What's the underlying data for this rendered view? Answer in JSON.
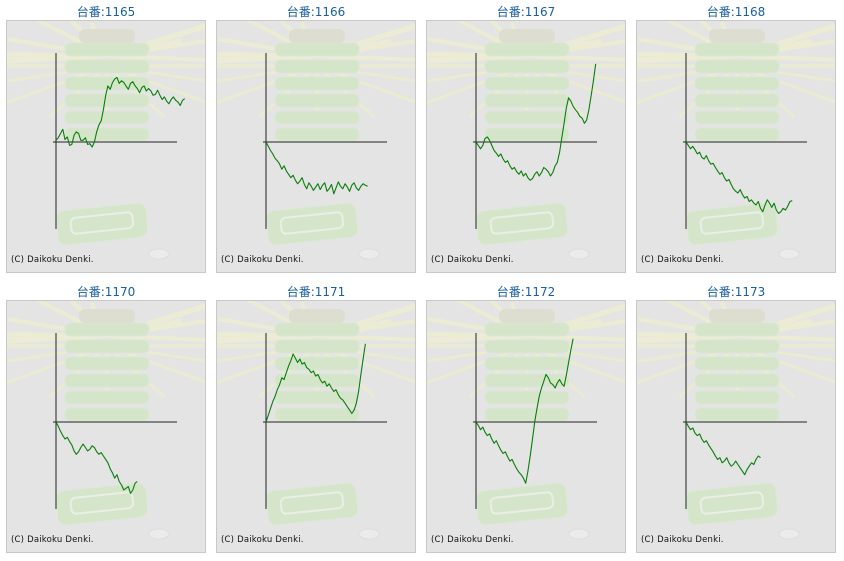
{
  "copyright": "(C) Daikoku Denki.",
  "colors": {
    "line": "#0a7d0a",
    "axis": "#222222",
    "title": "#1a5fa0",
    "panel": "#e4e4e4",
    "art": "#c9e6b6"
  },
  "chart_data": [
    {
      "type": "line",
      "title": "台番:1165",
      "values": [
        0.02,
        0.05,
        0.1,
        0.15,
        0.03,
        0.06,
        -0.04,
        -0.03,
        0.08,
        0.12,
        0.1,
        0.02,
        0.02,
        0.05,
        -0.03,
        -0.02,
        -0.06,
        0.0,
        0.12,
        0.2,
        0.25,
        0.38,
        0.55,
        0.66,
        0.62,
        0.7,
        0.74,
        0.76,
        0.69,
        0.72,
        0.7,
        0.66,
        0.62,
        0.69,
        0.71,
        0.66,
        0.63,
        0.58,
        0.64,
        0.66,
        0.6,
        0.63,
        0.6,
        0.55,
        0.56,
        0.61,
        0.55,
        0.5,
        0.53,
        0.48,
        0.45,
        0.5,
        0.53,
        0.49,
        0.47,
        0.43,
        0.49,
        0.51
      ]
    },
    {
      "type": "line",
      "title": "台番:1166",
      "values": [
        0.0,
        -0.05,
        -0.1,
        -0.14,
        -0.19,
        -0.22,
        -0.26,
        -0.32,
        -0.28,
        -0.34,
        -0.38,
        -0.42,
        -0.39,
        -0.45,
        -0.49,
        -0.46,
        -0.42,
        -0.5,
        -0.55,
        -0.48,
        -0.52,
        -0.57,
        -0.53,
        -0.49,
        -0.56,
        -0.51,
        -0.48,
        -0.58,
        -0.55,
        -0.5,
        -0.61,
        -0.54,
        -0.47,
        -0.52,
        -0.55,
        -0.49,
        -0.53,
        -0.58,
        -0.51,
        -0.48,
        -0.54,
        -0.57,
        -0.52,
        -0.49,
        -0.51,
        -0.52
      ]
    },
    {
      "type": "line",
      "title": "台番:1167",
      "values": [
        0.0,
        -0.04,
        -0.08,
        -0.04,
        0.04,
        0.06,
        0.02,
        -0.04,
        -0.1,
        -0.13,
        -0.17,
        -0.14,
        -0.2,
        -0.24,
        -0.22,
        -0.28,
        -0.32,
        -0.3,
        -0.35,
        -0.38,
        -0.34,
        -0.4,
        -0.37,
        -0.42,
        -0.45,
        -0.43,
        -0.38,
        -0.35,
        -0.4,
        -0.36,
        -0.3,
        -0.32,
        -0.35,
        -0.4,
        -0.36,
        -0.28,
        -0.24,
        -0.12,
        0.05,
        0.22,
        0.4,
        0.52,
        0.48,
        0.42,
        0.38,
        0.35,
        0.3,
        0.28,
        0.22,
        0.26,
        0.38,
        0.55,
        0.72,
        0.92
      ]
    },
    {
      "type": "line",
      "title": "台番:1168",
      "values": [
        0.0,
        -0.04,
        -0.08,
        -0.05,
        -0.09,
        -0.14,
        -0.12,
        -0.18,
        -0.2,
        -0.16,
        -0.22,
        -0.26,
        -0.25,
        -0.3,
        -0.34,
        -0.38,
        -0.36,
        -0.42,
        -0.46,
        -0.44,
        -0.5,
        -0.55,
        -0.58,
        -0.6,
        -0.56,
        -0.62,
        -0.66,
        -0.64,
        -0.7,
        -0.68,
        -0.72,
        -0.74,
        -0.7,
        -0.78,
        -0.82,
        -0.74,
        -0.68,
        -0.72,
        -0.77,
        -0.72,
        -0.8,
        -0.84,
        -0.82,
        -0.78,
        -0.8,
        -0.76,
        -0.7,
        -0.69
      ]
    },
    {
      "type": "line",
      "title": "台番:1170",
      "values": [
        0.0,
        -0.05,
        -0.11,
        -0.16,
        -0.2,
        -0.18,
        -0.23,
        -0.27,
        -0.34,
        -0.38,
        -0.35,
        -0.3,
        -0.26,
        -0.3,
        -0.34,
        -0.32,
        -0.28,
        -0.3,
        -0.35,
        -0.38,
        -0.36,
        -0.4,
        -0.44,
        -0.48,
        -0.55,
        -0.6,
        -0.66,
        -0.62,
        -0.7,
        -0.74,
        -0.8,
        -0.78,
        -0.76,
        -0.84,
        -0.8,
        -0.72,
        -0.7
      ]
    },
    {
      "type": "line",
      "title": "台番:1171",
      "values": [
        0.0,
        0.08,
        0.16,
        0.24,
        0.3,
        0.38,
        0.44,
        0.52,
        0.5,
        0.58,
        0.66,
        0.72,
        0.8,
        0.75,
        0.7,
        0.74,
        0.68,
        0.7,
        0.64,
        0.62,
        0.58,
        0.6,
        0.54,
        0.56,
        0.5,
        0.46,
        0.48,
        0.42,
        0.45,
        0.4,
        0.36,
        0.38,
        0.32,
        0.28,
        0.26,
        0.22,
        0.18,
        0.14,
        0.1,
        0.14,
        0.22,
        0.36,
        0.56,
        0.74,
        0.92
      ]
    },
    {
      "type": "line",
      "title": "台番:1172",
      "values": [
        0.0,
        -0.04,
        -0.09,
        -0.06,
        -0.12,
        -0.16,
        -0.14,
        -0.2,
        -0.25,
        -0.22,
        -0.28,
        -0.33,
        -0.37,
        -0.35,
        -0.41,
        -0.46,
        -0.44,
        -0.5,
        -0.55,
        -0.59,
        -0.62,
        -0.66,
        -0.72,
        -0.58,
        -0.4,
        -0.2,
        0.0,
        0.16,
        0.3,
        0.4,
        0.48,
        0.56,
        0.52,
        0.46,
        0.44,
        0.4,
        0.46,
        0.5,
        0.45,
        0.42,
        0.55,
        0.7,
        0.85,
        0.98
      ]
    },
    {
      "type": "line",
      "title": "台番:1173",
      "values": [
        0.0,
        -0.05,
        -0.09,
        -0.07,
        -0.13,
        -0.16,
        -0.14,
        -0.2,
        -0.24,
        -0.22,
        -0.27,
        -0.31,
        -0.35,
        -0.4,
        -0.44,
        -0.42,
        -0.48,
        -0.46,
        -0.42,
        -0.48,
        -0.52,
        -0.5,
        -0.46,
        -0.5,
        -0.54,
        -0.58,
        -0.62,
        -0.56,
        -0.52,
        -0.48,
        -0.5,
        -0.44,
        -0.4,
        -0.42
      ]
    }
  ]
}
